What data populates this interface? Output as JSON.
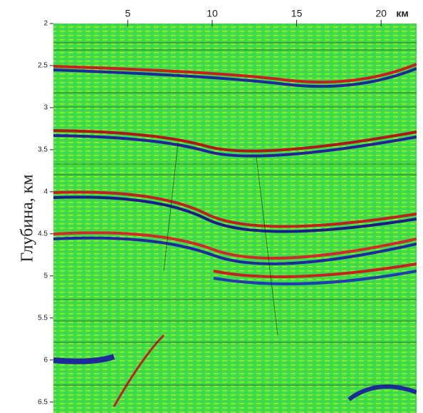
{
  "chart_data": {
    "type": "image",
    "x_label": "км",
    "y_label": "Глубина, км",
    "xlim": [
      0.6,
      22.1
    ],
    "xticks": [
      5,
      10,
      15,
      20
    ],
    "ylim": [
      2,
      6.63
    ],
    "yticks": [
      2,
      2.5,
      3,
      3.5,
      4,
      4.5,
      5,
      5.5,
      6,
      6.5
    ]
  }
}
